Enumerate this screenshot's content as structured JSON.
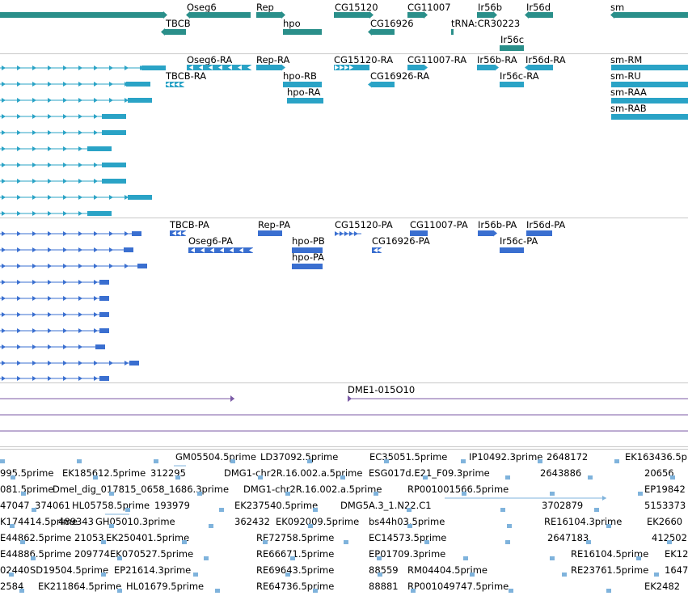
{
  "colors": {
    "gene": "#2a8f8a",
    "transcript_ra": "#2aa3c6",
    "transcript_pa": "#3a6fd0",
    "repeat": "#7b5aa6",
    "est": "#7fb3dc",
    "separator": "#c8c8c8",
    "text": "#000000"
  },
  "tracks": {
    "genes": {
      "labels": [
        "Oseg6",
        "Rep",
        "CG15120",
        "CG11007",
        "Ir56b",
        "Ir56d",
        "sm",
        "TBCB",
        "hpo",
        "CG16926",
        "tRNA:CR30223",
        "Ir56c"
      ]
    },
    "transcripts_ra": {
      "labels": [
        "Oseg6-RA",
        "Rep-RA",
        "CG15120-RA",
        "CG11007-RA",
        "Ir56b-RA",
        "Ir56d-RA",
        "sm-RM",
        "TBCB-RA",
        "hpo-RB",
        "CG16926-RA",
        "Ir56c-RA",
        "sm-RU",
        "hpo-RA",
        "sm-RAA",
        "sm-RAB"
      ]
    },
    "transcripts_pa": {
      "labels": [
        "TBCB-PA",
        "Rep-PA",
        "CG15120-PA",
        "CG11007-PA",
        "Ir56b-PA",
        "Ir56d-PA",
        "Oseg6-PA",
        "hpo-PB",
        "CG16926-PA",
        "Ir56c-PA",
        "hpo-PA"
      ]
    },
    "repeats": {
      "labels": [
        "DME1-015O10"
      ]
    },
    "ests": {
      "labels": [
        "GM05504.5prime",
        "LD37092.5prime",
        "EC35051.5prime",
        "IP10492.3prime",
        "2648172",
        "EK163436.5p",
        "995.5prime",
        "EK185612.5prime",
        "312295",
        "DMG1-chr2R.16.002.a.5prime",
        "ESG017d.E21_F09.3prime",
        "2643886",
        "20656",
        "081.5prime",
        "Dmel_dig_017815_0658_1686.3prime",
        "DMG1-chr2R.16.002.a.5prime",
        "RP001001566.5prime",
        "EP19842",
        "47047",
        "374061",
        "HL05758.5prime",
        "193979",
        "EK237540.5prime",
        "DMG5A.3_1.N22.C1",
        "3702879",
        "5153373",
        "K174414.5prime",
        "489343",
        "GH05010.3prime",
        "362432",
        "EK092009.5prime",
        "bs44h03.5prime",
        "RE16104.3prime",
        "EK2660",
        "E44862.5prime",
        "21053",
        "EK250401.5prime",
        "RE72758.5prime",
        "EC14573.5prime",
        "2647183",
        "412502",
        "E44886.5prime",
        "209774",
        "EK070527.5prime",
        "RE66671.5prime",
        "EP01709.3prime",
        "RE16104.5prime",
        "EK12",
        "02440",
        "SD19504.5prime",
        "EP21614.3prime",
        "RE69643.5prime",
        "88559",
        "RM04404.5prime",
        "RE23761.5prime",
        "1647",
        "2584",
        "EK211864.5prime",
        "HL01679.5prime",
        "RE64736.5prime",
        "88881",
        "RP001049747.5prime",
        "EK2482"
      ]
    }
  }
}
